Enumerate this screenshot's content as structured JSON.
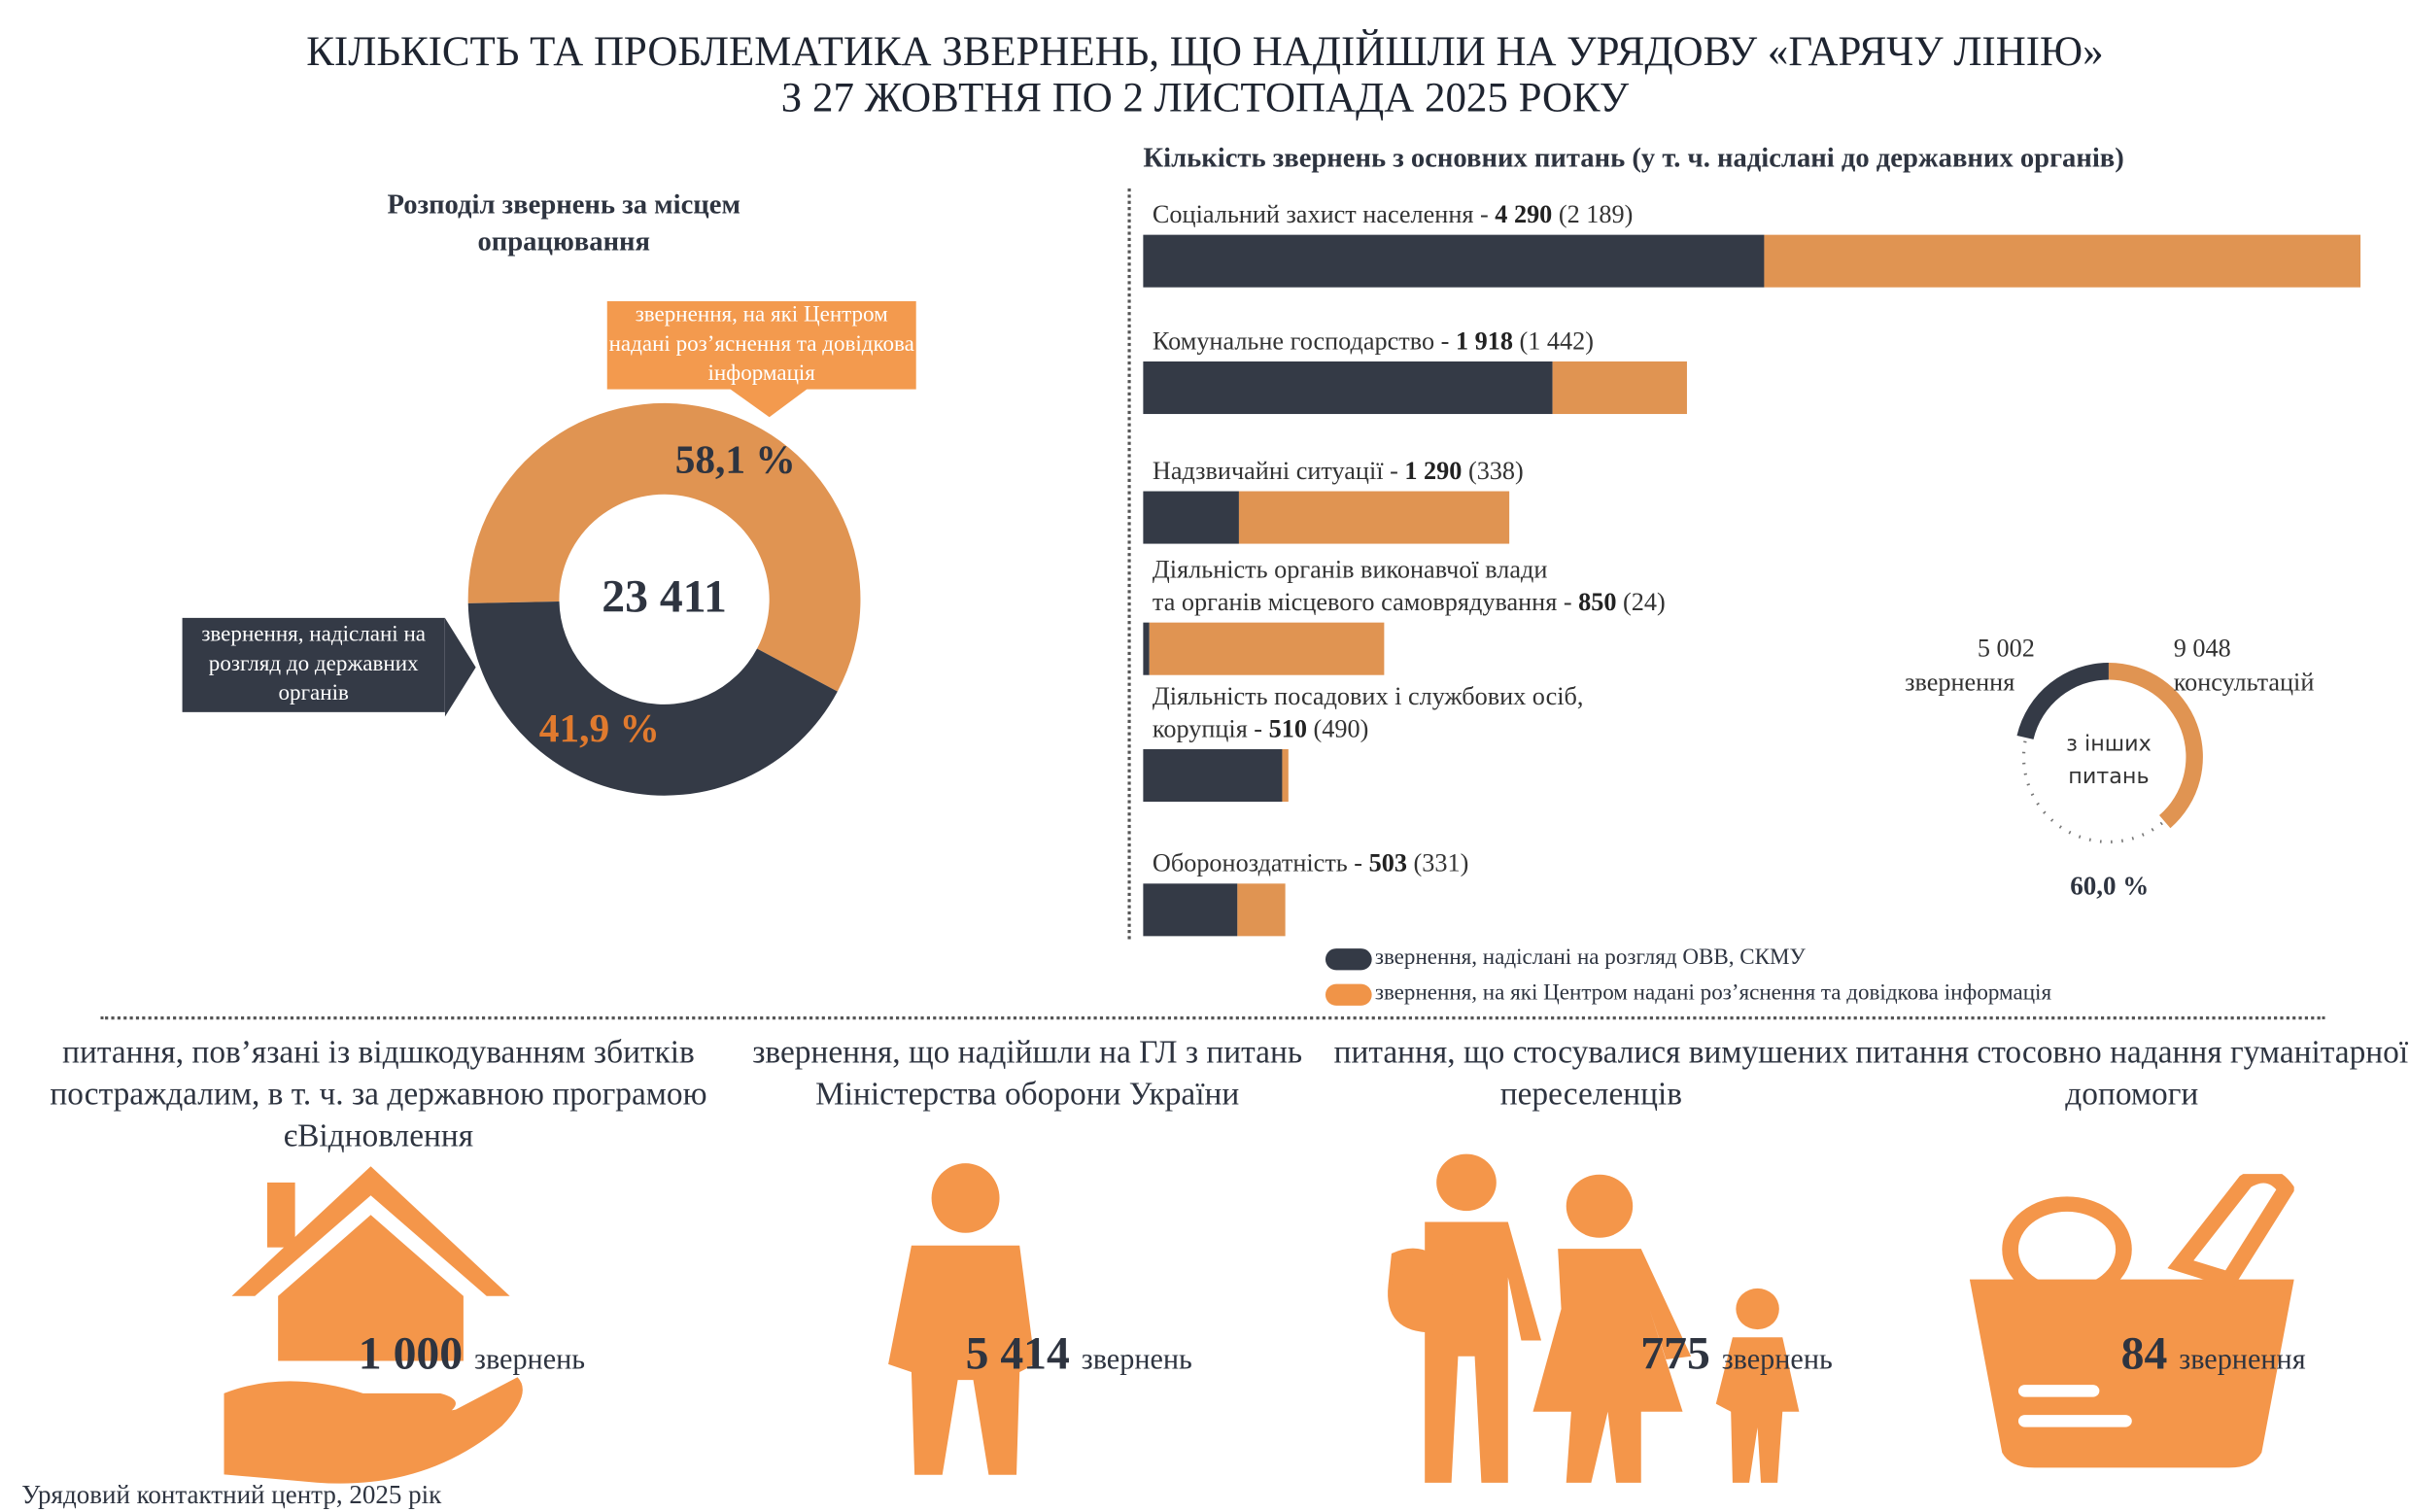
{
  "title": {
    "line1": "КІЛЬКІСТЬ ТА ПРОБЛЕМАТИКА ЗВЕРНЕНЬ, ЩО НАДІЙШЛИ НА УРЯДОВУ «ГАРЯЧУ ЛІНІЮ»",
    "line2": "З 27 ЖОВТНЯ ПО 2 ЛИСТОПАДА 2025 РОКУ"
  },
  "colors": {
    "dark": "#343a46",
    "orange": "#e09452",
    "icon_orange": "#f4964a"
  },
  "chart_data": [
    {
      "type": "pie",
      "title": "Розподіл звернень за місцем опрацювання",
      "total": "23 411",
      "slices": [
        {
          "label": "звернення, на які Центром надані роз’яснення та довідкова інформація",
          "value": 58.1,
          "text": "58,1 %",
          "color": "#e09452"
        },
        {
          "label": "звернення, надіслані на розгляд до державних органів",
          "value": 41.9,
          "text": "41,9 %",
          "color": "#343a46"
        }
      ]
    },
    {
      "type": "bar",
      "stacked": true,
      "orientation": "horizontal",
      "title": "Кількість звернень з основних питань (у т. ч. надіслані до державних органів)",
      "legend": [
        "звернення, надіслані на розгляд ОВВ, СКМУ",
        "звернення, на які Центром надані роз’яснення та довідкова інформація"
      ],
      "categories": [
        {
          "name": "Соціальний захист населення",
          "total": 4290,
          "sent": 2189,
          "total_text": "4 290",
          "sent_text": "(2 189)"
        },
        {
          "name": "Комунальне господарство",
          "total": 1918,
          "sent": 1442,
          "total_text": "1 918",
          "sent_text": "(1 442)"
        },
        {
          "name": "Надзвичайні ситуації",
          "total": 1290,
          "sent": 338,
          "total_text": "1 290",
          "sent_text": "(338)"
        },
        {
          "name": "Діяльність органів виконавчої влади\nта органів місцевого самоврядування",
          "total": 850,
          "sent": 24,
          "total_text": "850",
          "sent_text": "(24)"
        },
        {
          "name": "Діяльність посадових і службових осіб,\nкорупція",
          "total": 510,
          "sent": 490,
          "total_text": "510",
          "sent_text": "(490)"
        },
        {
          "name": "Обороноздатність",
          "total": 503,
          "sent": 331,
          "total_text": "503",
          "sent_text": "(331)"
        }
      ]
    },
    {
      "type": "pie",
      "title": "з інших питань",
      "percent": "60,0 %",
      "slices": [
        {
          "label": "звернення",
          "value": 5002,
          "text": "5 002"
        },
        {
          "label": "консультацій",
          "value": 9048,
          "text": "9 048"
        }
      ]
    }
  ],
  "donut_callouts": {
    "orange": "звернення, на які Центром надані роз’яснення та довідкова інформація",
    "dark": "звернення, надіслані на розгляд до державних органів"
  },
  "other": {
    "l1": "з інших",
    "l2": "питань"
  },
  "stats": [
    {
      "caption": "питання, пов’язані із відшкодуванням збитків постраждалим, в т. ч. за державною програмою єВідновлення",
      "value": "1 000",
      "unit": "звернень",
      "icon": "house-hand-icon"
    },
    {
      "caption": "звернення, що надійшли на ГЛ з питань Міністерства оборони України",
      "value": "5 414",
      "unit": "звернень",
      "icon": "soldier-icon"
    },
    {
      "caption": "питання, що стосувалися вимушених переселенців",
      "value": "775",
      "unit": "звернень",
      "icon": "family-icon"
    },
    {
      "caption": "питання стосовно надання гуманітарної допомоги",
      "value": "84",
      "unit": "звернення",
      "icon": "food-basket-icon"
    }
  ],
  "footer": "Урядовий контактний центр, 2025 рік"
}
